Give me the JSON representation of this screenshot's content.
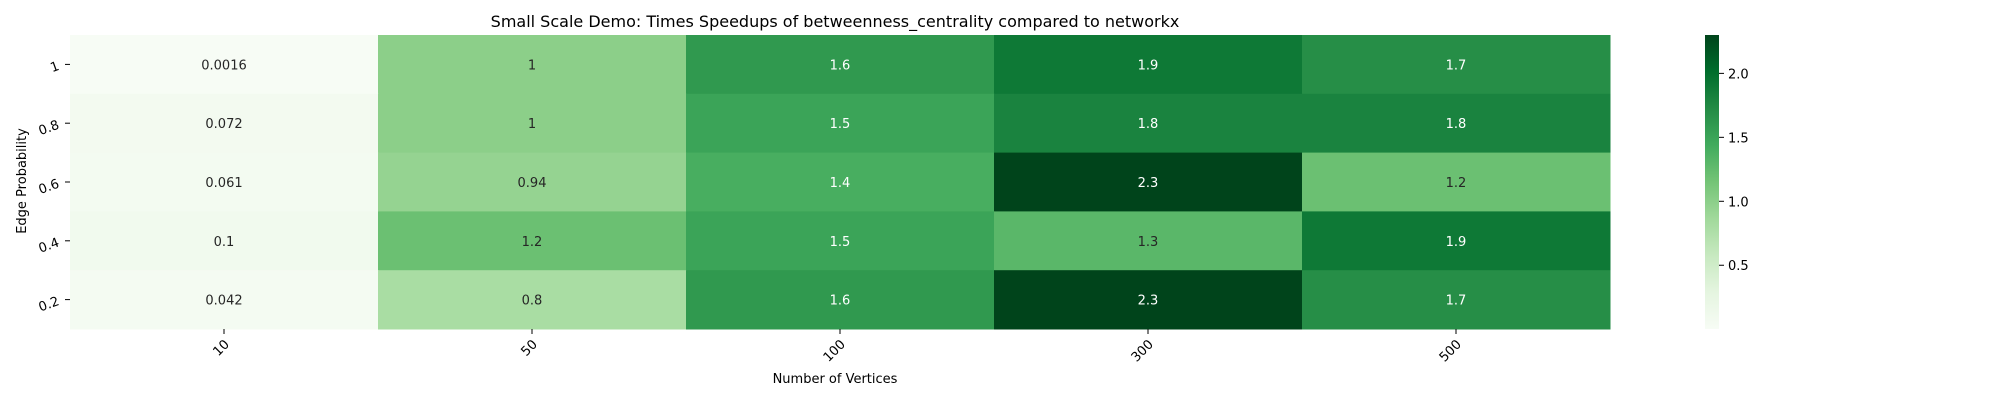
{
  "chart_data": {
    "type": "heatmap",
    "title": "Small Scale Demo: Times Speedups of betweenness_centrality compared to networkx",
    "xlabel": "Number of Vertices",
    "ylabel": "Edge Probability",
    "x": [
      "10",
      "50",
      "100",
      "300",
      "500"
    ],
    "y": [
      "1",
      "0.8",
      "0.6",
      "0.4",
      "0.2"
    ],
    "values": [
      [
        0.0016,
        1,
        1.6,
        1.9,
        1.7
      ],
      [
        0.072,
        1,
        1.5,
        1.8,
        1.8
      ],
      [
        0.061,
        0.94,
        1.4,
        2.3,
        1.2
      ],
      [
        0.1,
        1.2,
        1.5,
        1.3,
        1.9
      ],
      [
        0.042,
        0.8,
        1.6,
        2.3,
        1.7
      ]
    ],
    "labels": [
      [
        "0.0016",
        "1",
        "1.6",
        "1.9",
        "1.7"
      ],
      [
        "0.072",
        "1",
        "1.5",
        "1.8",
        "1.8"
      ],
      [
        "0.061",
        "0.94",
        "1.4",
        "2.3",
        "1.2"
      ],
      [
        "0.1",
        "1.2",
        "1.5",
        "1.3",
        "1.9"
      ],
      [
        "0.042",
        "0.8",
        "1.6",
        "2.3",
        "1.7"
      ]
    ],
    "colormap": "Greens",
    "vmin": 0.0016,
    "vmax": 2.3,
    "colorbar_ticks": [
      "0.5",
      "1.0",
      "1.5",
      "2.0"
    ],
    "x_tick_rotation": "45 degrees",
    "legend": "colorbar right"
  }
}
